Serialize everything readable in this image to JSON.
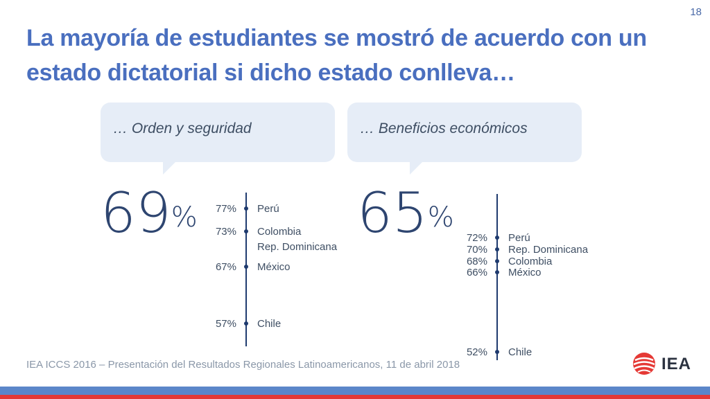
{
  "slide": {
    "page_number": "18",
    "title": "La mayoría de estudiantes se mostró de acuerdo con un estado dictatorial si dicho estado conlleva…"
  },
  "panels": [
    {
      "bubble_text": "… Orden y seguridad",
      "big_value": "69",
      "big_unit": "%",
      "items": [
        {
          "pct": "77%",
          "label": "Perú"
        },
        {
          "pct": "73%",
          "label": "Colombia"
        },
        {
          "pct": "",
          "label": "Rep. Dominicana"
        },
        {
          "pct": "67%",
          "label": "México"
        },
        {
          "pct": "57%",
          "label": "Chile"
        }
      ]
    },
    {
      "bubble_text": "… Beneficios económicos",
      "big_value": "65",
      "big_unit": "%",
      "items": [
        {
          "pct": "72%",
          "label": "Perú"
        },
        {
          "pct": "70%",
          "label": "Rep. Dominicana"
        },
        {
          "pct": "68%",
          "label": "Colombia"
        },
        {
          "pct": "66%",
          "label": "México"
        },
        {
          "pct": "52%",
          "label": "Chile"
        }
      ]
    }
  ],
  "footer": {
    "text": "IEA ICCS 2016 – Presentación del Resultados Regionales Latinoamericanos, 11 de abril 2018"
  },
  "logo": {
    "text": "IEA",
    "icon": "iea-globe-icon"
  },
  "colors": {
    "title": "#4a6fbf",
    "bubble": "#e6edf7",
    "axis": "#1e3a6e",
    "bar_blue": "#5b86c9",
    "bar_red": "#e53935"
  }
}
